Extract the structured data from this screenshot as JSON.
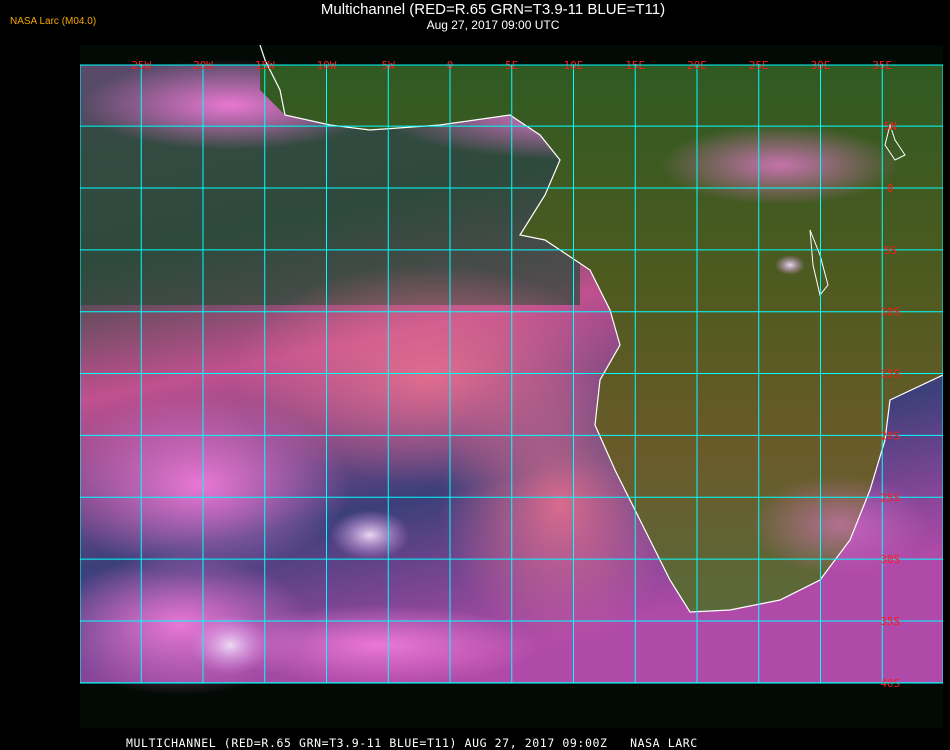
{
  "header": {
    "organization": "NASA Larc (M04.0)",
    "title": "Multichannel (RED=R.65 GRN=T3.9-11 BLUE=T11)",
    "subtitle": "Aug 27, 2017 09:00 UTC"
  },
  "footer": {
    "caption": "MULTICHANNEL (RED=R.65 GRN=T3.9-11 BLUE=T11) AUG 27, 2017 09:00Z   NASA LARC"
  },
  "map": {
    "type": "satellite-image",
    "colors": {
      "grid": "#00ffff",
      "grid_labels": "#ff1a1a",
      "coastline": "#ffffff",
      "ocean_cloud": "#e060c8",
      "ocean_clear": "#1e3d6e",
      "land": "#4a5a1e"
    },
    "longitudes": [
      {
        "value": -25,
        "label": "25W"
      },
      {
        "value": -20,
        "label": "20W"
      },
      {
        "value": -15,
        "label": "15W"
      },
      {
        "value": -10,
        "label": "10W"
      },
      {
        "value": -5,
        "label": "5W"
      },
      {
        "value": 0,
        "label": "0"
      },
      {
        "value": 5,
        "label": "5E"
      },
      {
        "value": 10,
        "label": "10E"
      },
      {
        "value": 15,
        "label": "15E"
      },
      {
        "value": 20,
        "label": "20E"
      },
      {
        "value": 25,
        "label": "25E"
      },
      {
        "value": 30,
        "label": "30E"
      },
      {
        "value": 35,
        "label": "35E"
      }
    ],
    "latitudes": [
      {
        "value": 5,
        "label": "5N"
      },
      {
        "value": 0,
        "label": "0"
      },
      {
        "value": -5,
        "label": "5S"
      },
      {
        "value": -10,
        "label": "10S"
      },
      {
        "value": -15,
        "label": "15S"
      },
      {
        "value": -20,
        "label": "20S"
      },
      {
        "value": -25,
        "label": "25S"
      },
      {
        "value": -30,
        "label": "30S"
      },
      {
        "value": -35,
        "label": "35S"
      },
      {
        "value": -40,
        "label": "40S"
      }
    ]
  }
}
